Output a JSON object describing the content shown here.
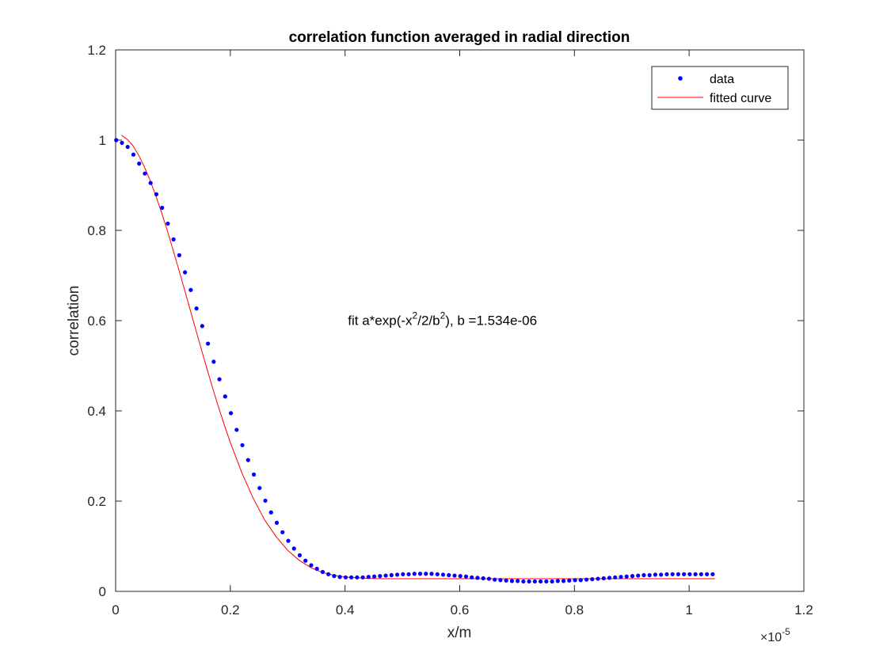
{
  "chart_data": {
    "type": "scatter",
    "title": "correlation function averaged in radial direction",
    "xlabel": "x/m",
    "ylabel": "correlation",
    "xlim": [
      0,
      1.2e-05
    ],
    "ylim": [
      0,
      1.2
    ],
    "x_exponent_label": "×10",
    "x_exponent_power": "-5",
    "x_tick_values": [
      0,
      0.2,
      0.4,
      0.6,
      0.8,
      1,
      1.2
    ],
    "x_tick_labels": [
      "0",
      "0.2",
      "0.4",
      "0.6",
      "0.8",
      "1",
      "1.2"
    ],
    "y_tick_values": [
      0,
      0.2,
      0.4,
      0.6,
      0.8,
      1,
      1.2
    ],
    "y_tick_labels": [
      "0",
      "0.2",
      "0.4",
      "0.6",
      "0.8",
      "1",
      "1.2"
    ],
    "grid": false,
    "legend_position": "top-right",
    "series": [
      {
        "name": "data",
        "style": "points",
        "color": "#0000ff",
        "x": [
          1e-08,
          1.1e-07,
          2.1e-07,
          3.1e-07,
          4.1e-07,
          5.1e-07,
          6.1e-07,
          7.1e-07,
          8.1e-07,
          9.1e-07,
          1.01e-06,
          1.11e-06,
          1.21e-06,
          1.31e-06,
          1.41e-06,
          1.51e-06,
          1.61e-06,
          1.71e-06,
          1.81e-06,
          1.91e-06,
          2.01e-06,
          2.11e-06,
          2.21e-06,
          2.31e-06,
          2.41e-06,
          2.51e-06,
          2.61e-06,
          2.71e-06,
          2.81e-06,
          2.91e-06,
          3.01e-06,
          3.11e-06,
          3.21e-06,
          3.31e-06,
          3.41e-06,
          3.51e-06,
          3.61e-06,
          3.71e-06,
          3.81e-06,
          3.91e-06,
          4.01e-06,
          4.11e-06,
          4.21e-06,
          4.31e-06,
          4.41e-06,
          4.51e-06,
          4.61e-06,
          4.71e-06,
          4.81e-06,
          4.91e-06,
          5.01e-06,
          5.11e-06,
          5.21e-06,
          5.31e-06,
          5.41e-06,
          5.51e-06,
          5.61e-06,
          5.71e-06,
          5.81e-06,
          5.91e-06,
          6.01e-06,
          6.11e-06,
          6.21e-06,
          6.31e-06,
          6.41e-06,
          6.51e-06,
          6.61e-06,
          6.71e-06,
          6.81e-06,
          6.91e-06,
          7.01e-06,
          7.11e-06,
          7.21e-06,
          7.31e-06,
          7.41e-06,
          7.51e-06,
          7.61e-06,
          7.71e-06,
          7.81e-06,
          7.91e-06,
          8.01e-06,
          8.11e-06,
          8.21e-06,
          8.31e-06,
          8.41e-06,
          8.51e-06,
          8.61e-06,
          8.71e-06,
          8.81e-06,
          8.91e-06,
          9.01e-06,
          9.11e-06,
          9.21e-06,
          9.31e-06,
          9.41e-06,
          9.51e-06,
          9.61e-06,
          9.71e-06,
          9.81e-06,
          9.91e-06,
          1.001e-05,
          1.011e-05,
          1.021e-05,
          1.031e-05,
          1.041e-05
        ],
        "y": [
          1.0,
          0.994,
          0.985,
          0.968,
          0.948,
          0.926,
          0.905,
          0.88,
          0.85,
          0.815,
          0.78,
          0.745,
          0.707,
          0.668,
          0.627,
          0.588,
          0.549,
          0.509,
          0.47,
          0.432,
          0.395,
          0.358,
          0.324,
          0.291,
          0.259,
          0.229,
          0.201,
          0.175,
          0.152,
          0.131,
          0.112,
          0.095,
          0.08,
          0.068,
          0.058,
          0.05,
          0.043,
          0.038,
          0.034,
          0.032,
          0.031,
          0.031,
          0.031,
          0.031,
          0.032,
          0.033,
          0.034,
          0.035,
          0.036,
          0.037,
          0.038,
          0.038,
          0.039,
          0.039,
          0.039,
          0.039,
          0.038,
          0.037,
          0.036,
          0.035,
          0.034,
          0.033,
          0.031,
          0.03,
          0.029,
          0.028,
          0.026,
          0.025,
          0.024,
          0.023,
          0.023,
          0.022,
          0.022,
          0.022,
          0.022,
          0.022,
          0.022,
          0.023,
          0.023,
          0.024,
          0.025,
          0.025,
          0.026,
          0.027,
          0.028,
          0.029,
          0.03,
          0.031,
          0.032,
          0.033,
          0.034,
          0.035,
          0.036,
          0.036,
          0.037,
          0.037,
          0.038,
          0.038,
          0.038,
          0.038,
          0.038,
          0.038,
          0.038,
          0.038,
          0.038
        ]
      },
      {
        "name": "fitted curve",
        "style": "line",
        "color": "#ff0000",
        "x": [
          1e-07,
          2e-07,
          3e-07,
          4e-07,
          5e-07,
          6e-07,
          7e-07,
          8e-07,
          9e-07,
          1e-06,
          1.1e-06,
          1.2e-06,
          1.3e-06,
          1.4e-06,
          1.5e-06,
          1.6e-06,
          1.7e-06,
          1.8e-06,
          1.9e-06,
          2e-06,
          2.2e-06,
          2.4e-06,
          2.6e-06,
          2.8e-06,
          3e-06,
          3.2e-06,
          3.4e-06,
          3.6e-06,
          3.8e-06,
          4e-06,
          4.2e-06,
          4.4e-06,
          4.6e-06,
          4.8e-06,
          5e-06,
          5.5e-06,
          6e-06,
          6.5e-06,
          7e-06,
          7.5e-06,
          8e-06,
          8.5e-06,
          9e-06,
          9.5e-06,
          1e-05,
          1.045e-05
        ],
        "y": [
          1.011,
          1.002,
          0.988,
          0.967,
          0.941,
          0.911,
          0.877,
          0.84,
          0.8,
          0.757,
          0.714,
          0.669,
          0.624,
          0.579,
          0.534,
          0.49,
          0.447,
          0.406,
          0.367,
          0.33,
          0.263,
          0.206,
          0.158,
          0.121,
          0.091,
          0.069,
          0.053,
          0.042,
          0.036,
          0.032,
          0.03,
          0.029,
          0.028,
          0.028,
          0.028,
          0.028,
          0.028,
          0.028,
          0.028,
          0.028,
          0.028,
          0.028,
          0.028,
          0.028,
          0.028,
          0.028
        ]
      }
    ],
    "annotation": {
      "base": "fit a*exp(-x",
      "sup1": "2",
      "middle": "/2/b",
      "sup2": "2",
      "end": "), b =1.534e-06",
      "at_x": 4.05e-06,
      "at_y": 0.59
    }
  }
}
